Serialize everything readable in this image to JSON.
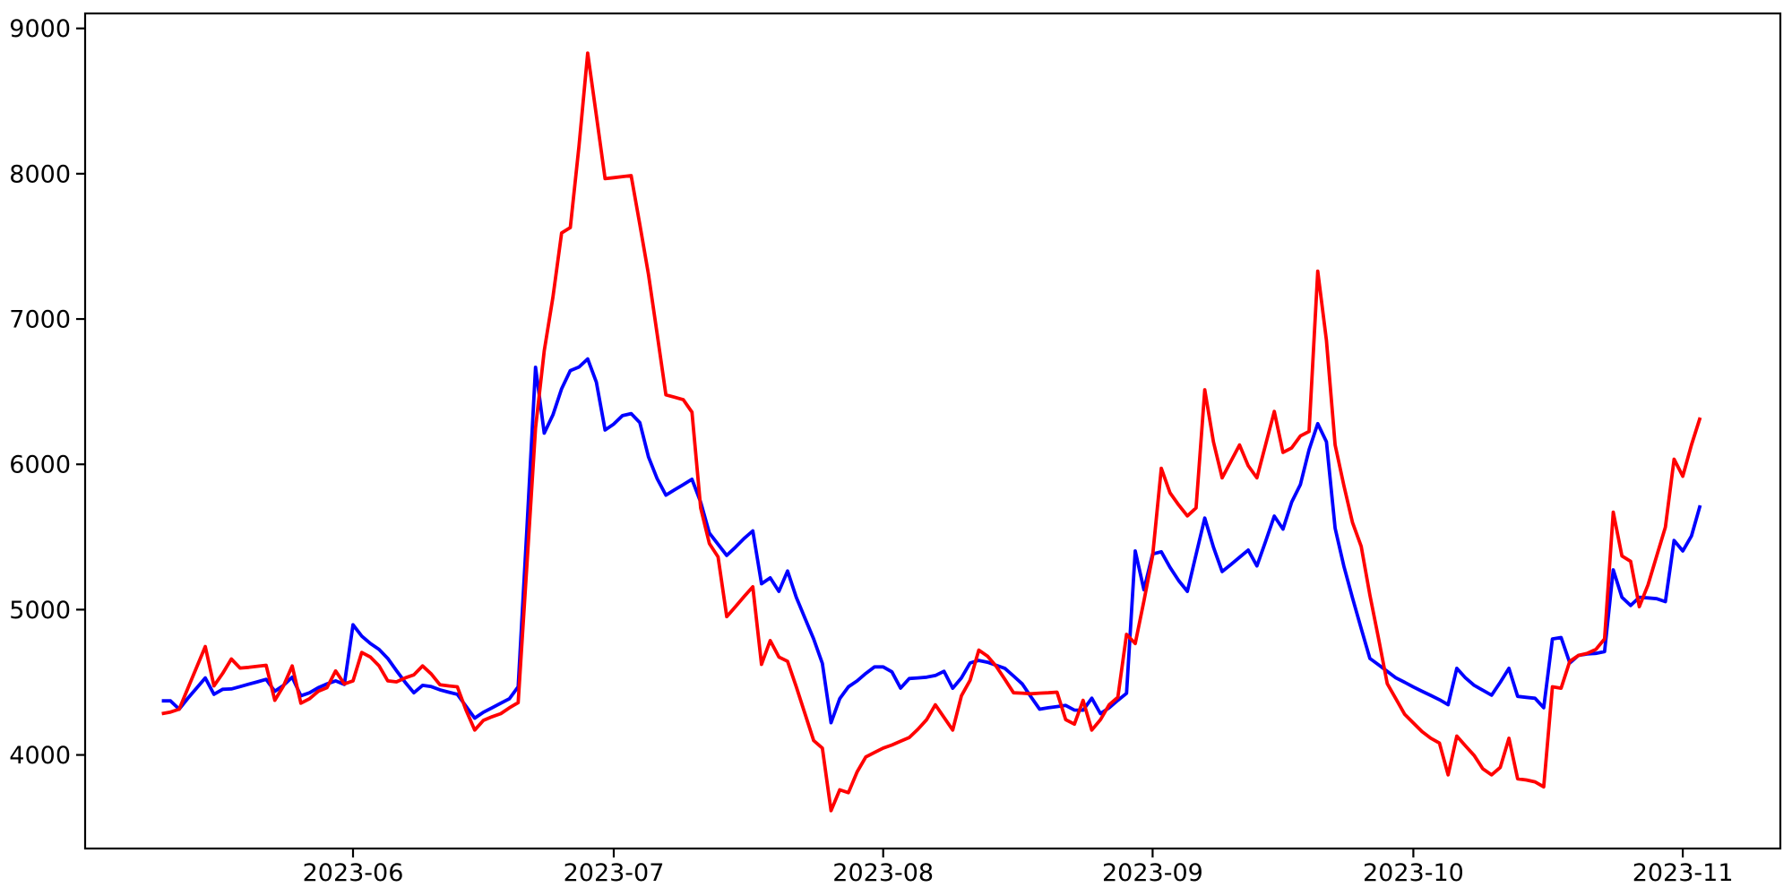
{
  "figure": {
    "background": "#ffffff",
    "spine_color": "#000000",
    "tick_color": "#000000",
    "label_color": "#000000"
  },
  "chart_data": {
    "type": "line",
    "title": "",
    "xlabel": "",
    "ylabel": "",
    "grid": false,
    "legend_position": "none",
    "ylim": [
      3356,
      9103
    ],
    "y_axis": {
      "ticks": [
        4000,
        5000,
        6000,
        7000,
        8000,
        9000
      ],
      "tick_labels": [
        "4000",
        "5000",
        "6000",
        "7000",
        "8000",
        "9000"
      ]
    },
    "x_axis": {
      "tick_labels": [
        "2023-06",
        "2023-07",
        "2023-08",
        "2023-09",
        "2023-10",
        "2023-11"
      ],
      "tick_dates": [
        "2023-06-01",
        "2023-07-01",
        "2023-08-01",
        "2023-09-01",
        "2023-10-01",
        "2023-11-01"
      ]
    },
    "dates": [
      "2023-05-10",
      "2023-05-11",
      "2023-05-12",
      "2023-05-13",
      "2023-05-14",
      "2023-05-15",
      "2023-05-16",
      "2023-05-17",
      "2023-05-18",
      "2023-05-19",
      "2023-05-20",
      "2023-05-21",
      "2023-05-22",
      "2023-05-23",
      "2023-05-24",
      "2023-05-25",
      "2023-05-26",
      "2023-05-27",
      "2023-05-28",
      "2023-05-29",
      "2023-05-30",
      "2023-05-31",
      "2023-06-01",
      "2023-06-02",
      "2023-06-03",
      "2023-06-04",
      "2023-06-05",
      "2023-06-06",
      "2023-06-07",
      "2023-06-08",
      "2023-06-09",
      "2023-06-10",
      "2023-06-11",
      "2023-06-12",
      "2023-06-13",
      "2023-06-14",
      "2023-06-15",
      "2023-06-16",
      "2023-06-17",
      "2023-06-18",
      "2023-06-19",
      "2023-06-20",
      "2023-06-21",
      "2023-06-22",
      "2023-06-23",
      "2023-06-24",
      "2023-06-25",
      "2023-06-26",
      "2023-06-27",
      "2023-06-28",
      "2023-06-29",
      "2023-06-30",
      "2023-07-01",
      "2023-07-02",
      "2023-07-03",
      "2023-07-04",
      "2023-07-05",
      "2023-07-06",
      "2023-07-07",
      "2023-07-08",
      "2023-07-09",
      "2023-07-10",
      "2023-07-11",
      "2023-07-12",
      "2023-07-13",
      "2023-07-14",
      "2023-07-15",
      "2023-07-16",
      "2023-07-17",
      "2023-07-18",
      "2023-07-19",
      "2023-07-20",
      "2023-07-21",
      "2023-07-22",
      "2023-07-23",
      "2023-07-24",
      "2023-07-25",
      "2023-07-26",
      "2023-07-27",
      "2023-07-28",
      "2023-07-29",
      "2023-07-30",
      "2023-07-31",
      "2023-08-01",
      "2023-08-02",
      "2023-08-03",
      "2023-08-04",
      "2023-08-05",
      "2023-08-06",
      "2023-08-07",
      "2023-08-08",
      "2023-08-09",
      "2023-08-10",
      "2023-08-11",
      "2023-08-12",
      "2023-08-13",
      "2023-08-14",
      "2023-08-15",
      "2023-08-16",
      "2023-08-17",
      "2023-08-18",
      "2023-08-19",
      "2023-08-20",
      "2023-08-21",
      "2023-08-22",
      "2023-08-23",
      "2023-08-24",
      "2023-08-25",
      "2023-08-26",
      "2023-08-27",
      "2023-08-28",
      "2023-08-29",
      "2023-08-30",
      "2023-08-31",
      "2023-09-01",
      "2023-09-02",
      "2023-09-03",
      "2023-09-04",
      "2023-09-05",
      "2023-09-06",
      "2023-09-07",
      "2023-09-08",
      "2023-09-09",
      "2023-09-10",
      "2023-09-11",
      "2023-09-12",
      "2023-09-13",
      "2023-09-14",
      "2023-09-15",
      "2023-09-16",
      "2023-09-17",
      "2023-09-18",
      "2023-09-19",
      "2023-09-20",
      "2023-09-21",
      "2023-09-22",
      "2023-09-23",
      "2023-09-24",
      "2023-09-25",
      "2023-09-26",
      "2023-09-27",
      "2023-09-28",
      "2023-09-29",
      "2023-09-30",
      "2023-10-01",
      "2023-10-02",
      "2023-10-03",
      "2023-10-04",
      "2023-10-05",
      "2023-10-06",
      "2023-10-07",
      "2023-10-08",
      "2023-10-09",
      "2023-10-10",
      "2023-10-11",
      "2023-10-12",
      "2023-10-13",
      "2023-10-14",
      "2023-10-15",
      "2023-10-16",
      "2023-10-17",
      "2023-10-18",
      "2023-10-19",
      "2023-10-20",
      "2023-10-21",
      "2023-10-22",
      "2023-10-23",
      "2023-10-24",
      "2023-10-25",
      "2023-10-26",
      "2023-10-27",
      "2023-10-28",
      "2023-10-29",
      "2023-10-30",
      "2023-10-31",
      "2023-11-01",
      "2023-11-02",
      "2023-11-03"
    ],
    "series": [
      {
        "name": "red-series",
        "color": "#ff0000",
        "values": [
          4284,
          4295,
          4315,
          4459,
          4602,
          4746,
          4475,
          4561,
          4660,
          4598,
          4603,
          4610,
          4617,
          4376,
          4475,
          4613,
          4356,
          4387,
          4438,
          4463,
          4578,
          4489,
          4510,
          4705,
          4674,
          4613,
          4510,
          4503,
          4530,
          4551,
          4613,
          4557,
          4483,
          4475,
          4469,
          4309,
          4171,
          4238,
          4263,
          4284,
          4325,
          4360,
          5300,
          6250,
          6781,
          7150,
          7592,
          7629,
          8190,
          8830,
          8400,
          7966,
          7973,
          7980,
          7987,
          7650,
          7305,
          6894,
          6478,
          6462,
          6445,
          6359,
          5700,
          5455,
          5363,
          4952,
          5020,
          5090,
          5157,
          4623,
          4787,
          4674,
          4644,
          4469,
          4284,
          4099,
          4047,
          3616,
          3760,
          3740,
          3883,
          3986,
          4017,
          4047,
          4068,
          4094,
          4120,
          4177,
          4243,
          4345,
          4258,
          4171,
          4407,
          4514,
          4721,
          4680,
          4610,
          4520,
          4428,
          4425,
          4421,
          4425,
          4428,
          4432,
          4243,
          4212,
          4376,
          4171,
          4243,
          4345,
          4397,
          4830,
          4767,
          5060,
          5370,
          5973,
          5804,
          5720,
          5645,
          5700,
          6513,
          6154,
          5907,
          6020,
          6133,
          5990,
          5907,
          6135,
          6364,
          6082,
          6113,
          6195,
          6226,
          7329,
          6853,
          6133,
          5856,
          5599,
          5435,
          5100,
          4800,
          4490,
          4385,
          4280,
          4220,
          4161,
          4115,
          4082,
          3863,
          4130,
          4062,
          3996,
          3904,
          3863,
          3914,
          4115,
          3836,
          3828,
          3815,
          3780,
          4469,
          4459,
          4644,
          4685,
          4699,
          4726,
          4798,
          5671,
          5369,
          5332,
          5020,
          5170,
          5370,
          5568,
          6035,
          5918,
          6134,
          6322
        ]
      },
      {
        "name": "blue-series",
        "color": "#0000ff",
        "values": [
          4372,
          4372,
          4315,
          4390,
          4460,
          4530,
          4417,
          4452,
          4454,
          4470,
          4487,
          4503,
          4520,
          4438,
          4479,
          4535,
          4407,
          4428,
          4463,
          4489,
          4510,
          4485,
          4896,
          4818,
          4767,
          4726,
          4664,
          4580,
          4500,
          4428,
          4479,
          4470,
          4448,
          4432,
          4417,
          4335,
          4253,
          4294,
          4325,
          4356,
          4387,
          4469,
          5550,
          6668,
          6215,
          6340,
          6520,
          6645,
          6670,
          6725,
          6565,
          6236,
          6277,
          6335,
          6349,
          6287,
          6050,
          5900,
          5788,
          5825,
          5860,
          5897,
          5740,
          5527,
          5450,
          5373,
          5430,
          5490,
          5542,
          5178,
          5219,
          5126,
          5266,
          5085,
          4941,
          4798,
          4630,
          4222,
          4387,
          4469,
          4510,
          4561,
          4606,
          4606,
          4572,
          4460,
          4526,
          4530,
          4535,
          4547,
          4576,
          4459,
          4530,
          4633,
          4650,
          4638,
          4617,
          4596,
          4543,
          4489,
          4400,
          4315,
          4325,
          4333,
          4341,
          4309,
          4308,
          4391,
          4284,
          4325,
          4376,
          4424,
          5404,
          5137,
          5383,
          5398,
          5291,
          5200,
          5126,
          5380,
          5630,
          5430,
          5262,
          5310,
          5360,
          5410,
          5301,
          5470,
          5644,
          5554,
          5740,
          5860,
          6100,
          6280,
          6155,
          5560,
          5300,
          5080,
          4870,
          4664,
          4620,
          4575,
          4530,
          4500,
          4468,
          4438,
          4410,
          4380,
          4346,
          4596,
          4530,
          4479,
          4445,
          4411,
          4500,
          4596,
          4403,
          4396,
          4390,
          4325,
          4798,
          4808,
          4633,
          4685,
          4695,
          4699,
          4711,
          5274,
          5085,
          5028,
          5085,
          5081,
          5075,
          5055,
          5476,
          5404,
          5507,
          5718
        ]
      }
    ]
  }
}
